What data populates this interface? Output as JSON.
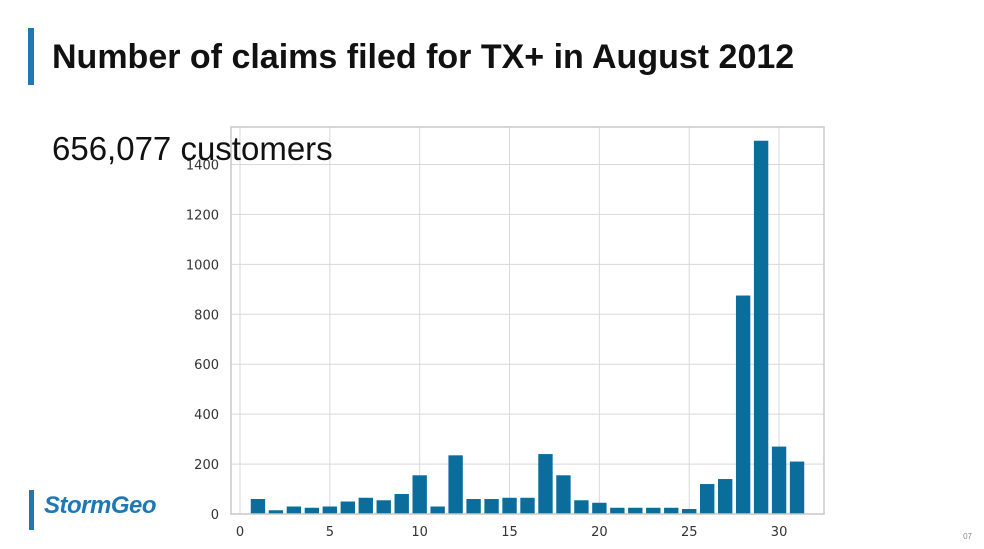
{
  "slide": {
    "title": "Number of claims filed for TX+ in August 2012",
    "subtitle": "656,077 customers",
    "logo_text": "StormGeo",
    "page_number": "07"
  },
  "colors": {
    "accent": "#1e78b4",
    "bar": "#0b6d9c",
    "grid": "#d9d9d9",
    "frame": "#c8c8c8"
  },
  "chart_data": {
    "type": "bar",
    "title": "",
    "xlabel": "",
    "ylabel": "",
    "x": [
      1,
      2,
      3,
      4,
      5,
      6,
      7,
      8,
      9,
      10,
      11,
      12,
      13,
      14,
      15,
      16,
      17,
      18,
      19,
      20,
      21,
      22,
      23,
      24,
      25,
      26,
      27,
      28,
      29,
      30,
      31
    ],
    "values": [
      60,
      15,
      30,
      25,
      30,
      50,
      65,
      55,
      80,
      155,
      30,
      235,
      60,
      60,
      65,
      65,
      240,
      155,
      55,
      45,
      25,
      25,
      25,
      25,
      20,
      120,
      140,
      875,
      1495,
      270,
      210
    ],
    "xlim": [
      -0.5,
      32.5
    ],
    "ylim": [
      0,
      1550
    ],
    "xticks": [
      0,
      5,
      10,
      15,
      20,
      25,
      30
    ],
    "yticks": [
      0,
      200,
      400,
      600,
      800,
      1000,
      1200,
      1400
    ],
    "xtick_labels": [
      "0",
      "5",
      "10",
      "15",
      "20",
      "25",
      "30"
    ],
    "ytick_labels": [
      "0",
      "200",
      "400",
      "600",
      "800",
      "1000",
      "1200",
      "1400"
    ],
    "grid": true,
    "legend": "none"
  }
}
